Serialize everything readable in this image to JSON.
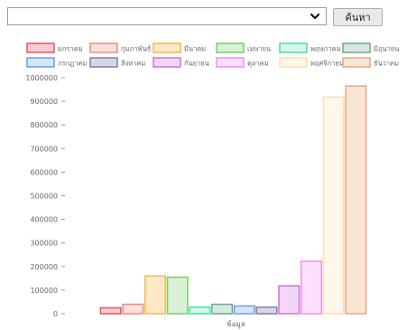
{
  "search": {
    "selected_value": "",
    "button_label": "ค้นหา"
  },
  "colors": {
    "fills": [
      "#f6cfd4",
      "#fde0dc",
      "#fde9c8",
      "#d8f0d3",
      "#d4f6ec",
      "#d7e8e0",
      "#d7e4f7",
      "#d6d6e4",
      "#f1d7f4",
      "#fde0fb",
      "#fef7ea",
      "#f6e4d5"
    ],
    "strokes": [
      "#e0565f",
      "#f08a80",
      "#f5b94d",
      "#7ccc6b",
      "#50d9a5",
      "#6fa88f",
      "#6e9fe6",
      "#7f7fa8",
      "#cf73dc",
      "#f28ef0",
      "#f8ddb0",
      "#e2ab7e"
    ]
  },
  "chart_data": {
    "type": "bar",
    "categories": [
      "ข้อมูล"
    ],
    "xlabel": "ข้อมูล",
    "ylabel": "",
    "ylim": [
      0,
      1000000
    ],
    "yticks": [
      0,
      100000,
      200000,
      300000,
      400000,
      500000,
      600000,
      700000,
      800000,
      900000,
      1000000
    ],
    "ytick_labels": [
      "0",
      "100000",
      "200000",
      "300000",
      "400000",
      "500000",
      "600000",
      "700000",
      "800000",
      "900000",
      "1000000"
    ],
    "grid": false,
    "legend_position": "top",
    "series": [
      {
        "name": "มกราคม",
        "values": [
          25000
        ]
      },
      {
        "name": "กุมภาพันธ์",
        "values": [
          40000
        ]
      },
      {
        "name": "มีนาคม",
        "values": [
          160000
        ]
      },
      {
        "name": "เมษายน",
        "values": [
          155000
        ]
      },
      {
        "name": "พฤษภาคม",
        "values": [
          28000
        ]
      },
      {
        "name": "มิถุนายน",
        "values": [
          40000
        ]
      },
      {
        "name": "กรกฎาคม",
        "values": [
          33000
        ]
      },
      {
        "name": "สิงหาคม",
        "values": [
          28000
        ]
      },
      {
        "name": "กันยายน",
        "values": [
          118000
        ]
      },
      {
        "name": "ตุลาคม",
        "values": [
          222000
        ]
      },
      {
        "name": "พฤศจิกายน",
        "values": [
          918000
        ]
      },
      {
        "name": "ธันวาคม",
        "values": [
          965000
        ]
      }
    ]
  }
}
